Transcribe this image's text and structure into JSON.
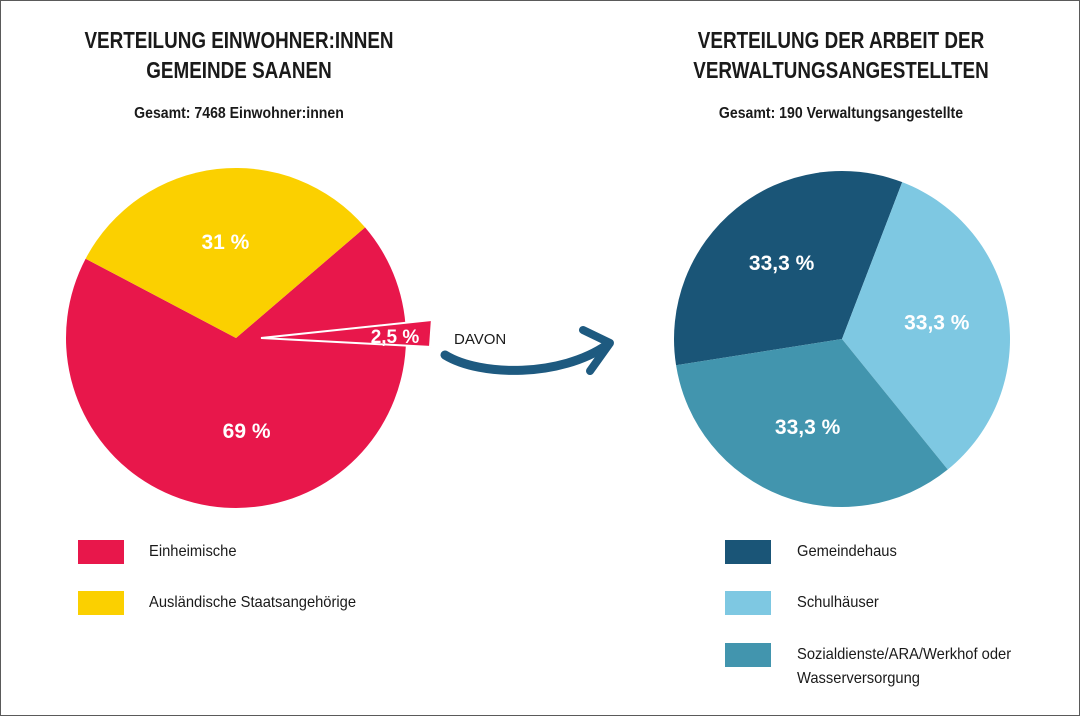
{
  "chart_data": [
    {
      "type": "pie",
      "title": "VERTEILUNG EINWOHNER:INNEN GEMEINDE SAANEN",
      "subtitle": "Gesamt: 7468 Einwohner:innen",
      "slices": [
        {
          "label": "Einheimische",
          "value": 69,
          "display": "69 %",
          "color": "#e8174b"
        },
        {
          "label": "Ausländische Staatsangehörige",
          "value": 31,
          "display": "31 %",
          "color": "#fbd000"
        }
      ],
      "highlight": {
        "value": 2.5,
        "display": "2,5 %",
        "color": "#e8174b"
      },
      "legend": [
        "Einheimische",
        "Ausländische Staatsangehörige"
      ]
    },
    {
      "type": "pie",
      "title": "VERTEILUNG DER ARBEIT DER VERWALTUNGSANGESTELLTEN",
      "subtitle": "Gesamt: 190 Verwaltungsangestellte",
      "slices": [
        {
          "label": "Gemeindehaus",
          "value": 33.3,
          "display": "33,3 %",
          "color": "#1a5577"
        },
        {
          "label": "Schulhäuser",
          "value": 33.3,
          "display": "33,3 %",
          "color": "#7ec8e2"
        },
        {
          "label": "Sozialdienste/ARA/Werkhof oder Wasserversorgung",
          "value": 33.3,
          "display": "33,3 %",
          "color": "#4295ae"
        }
      ],
      "legend": [
        "Gemeindehaus",
        "Schulhäuser",
        "Sozialdienste/ARA/Werkhof oder Wasserversorgung"
      ]
    }
  ],
  "left": {
    "title_line1": "VERTEILUNG EINWOHNER:INNEN",
    "title_line2": "GEMEINDE SAANEN",
    "subtitle": "Gesamt: 7468 Einwohner:innen",
    "legend": [
      {
        "label": "Einheimische",
        "color": "#e8174b"
      },
      {
        "label": "Ausländische Staatsangehörige",
        "color": "#fbd000"
      }
    ]
  },
  "right": {
    "title_line1": "VERTEILUNG DER ARBEIT DER",
    "title_line2": "VERWALTUNGSANGESTELLTEN",
    "subtitle": "Gesamt: 190 Verwaltungsangestellte",
    "legend": [
      {
        "label": "Gemeindehaus",
        "color": "#1a5577"
      },
      {
        "label": "Schulhäuser",
        "color": "#7ec8e2"
      },
      {
        "label_line1": "Sozialdienste/ARA/Werkhof oder",
        "label_line2": "Wasserversorgung",
        "color": "#4295ae"
      }
    ]
  },
  "connector": {
    "label": "DAVON",
    "color": "#1e5a80"
  }
}
